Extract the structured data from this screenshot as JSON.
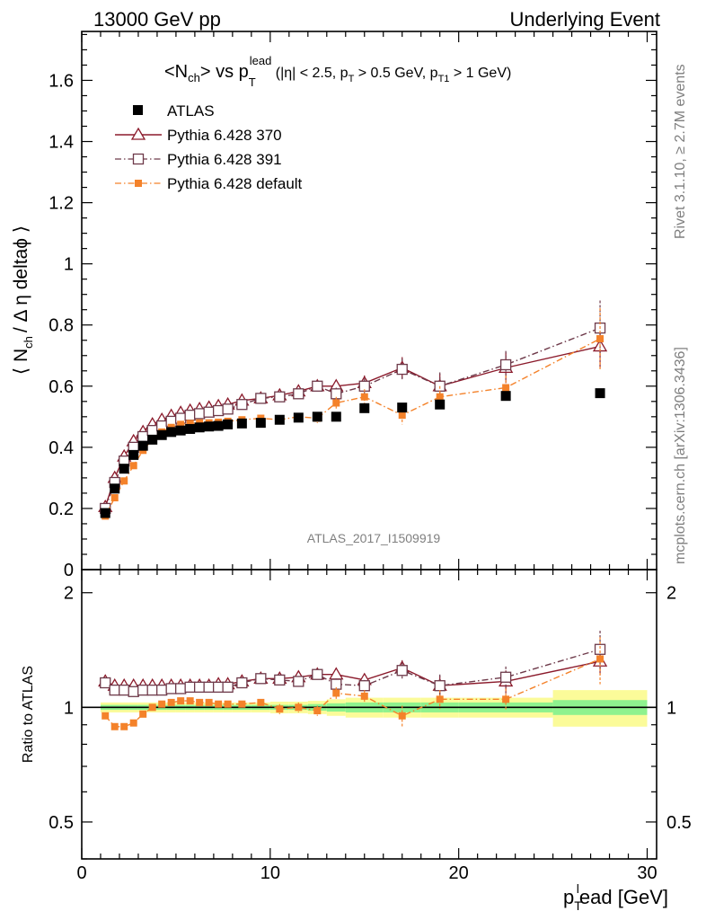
{
  "header": {
    "left": "13000 GeV pp",
    "right": "Underlying Event"
  },
  "side": {
    "rivet": "Rivet 3.1.10, ≥ 2.7M events",
    "mcplots": "mcplots.cern.ch [arXiv:1306.3436]"
  },
  "watermark": "ATLAS_2017_I1509919",
  "colors": {
    "atlas": "#000000",
    "p370": "#8b1a2b",
    "p391": "#6e3a4a",
    "pdef": "#f4822a",
    "band_inner": "#8ef28e",
    "band_outer": "#fbfb99"
  },
  "chart_data": [
    {
      "type": "scatter",
      "title": {
        "main": "<N",
        "main_sub": "ch",
        "mid": "> vs p",
        "mid_sub": "T",
        "mid_sup": "lead",
        "cuts_a": " (|η| < 2.5, p",
        "cuts_sub_a": "T",
        "cuts_b": " > 0.5 GeV, p",
        "cuts_sub_b": "T1",
        "cuts_c": " > 1 GeV)"
      },
      "ylabel": {
        "pre": "⟨ N",
        "sub": "ch",
        "post": "/ Δ η deltaϕ ⟩"
      },
      "xlim": [
        0,
        30.5
      ],
      "ylim": [
        0,
        1.76
      ],
      "yticks": [
        "0",
        "0.2",
        "0.4",
        "0.6",
        "0.8",
        "1",
        "1.2",
        "1.4",
        "1.6"
      ],
      "legend_position": "top-left",
      "series": [
        {
          "name": "ATLAS",
          "marker": "filled-square",
          "x": [
            1.25,
            1.75,
            2.25,
            2.75,
            3.25,
            3.75,
            4.25,
            4.75,
            5.25,
            5.75,
            6.25,
            6.75,
            7.25,
            7.75,
            8.5,
            9.5,
            10.5,
            11.5,
            12.5,
            13.5,
            15.0,
            17.0,
            19.0,
            22.5,
            27.5
          ],
          "y": [
            0.185,
            0.265,
            0.33,
            0.375,
            0.405,
            0.425,
            0.44,
            0.45,
            0.455,
            0.46,
            0.465,
            0.468,
            0.47,
            0.475,
            0.478,
            0.48,
            0.49,
            0.497,
            0.5,
            0.5,
            0.528,
            0.53,
            0.54,
            0.568,
            0.577
          ]
        },
        {
          "name": "Pythia 6.428 370",
          "marker": "open-triangle",
          "line": "solid",
          "x": [
            1.25,
            1.75,
            2.25,
            2.75,
            3.25,
            3.75,
            4.25,
            4.75,
            5.25,
            5.75,
            6.25,
            6.75,
            7.25,
            7.75,
            8.5,
            9.5,
            10.5,
            11.5,
            12.5,
            13.5,
            15.0,
            17.0,
            19.0,
            22.5,
            27.5
          ],
          "y": [
            0.205,
            0.3,
            0.37,
            0.42,
            0.45,
            0.475,
            0.49,
            0.503,
            0.513,
            0.52,
            0.525,
            0.53,
            0.535,
            0.54,
            0.553,
            0.56,
            0.57,
            0.583,
            0.6,
            0.6,
            0.61,
            0.66,
            0.6,
            0.66,
            0.73
          ],
          "err": [
            0.005,
            0.005,
            0.005,
            0.005,
            0.005,
            0.005,
            0.005,
            0.005,
            0.005,
            0.006,
            0.006,
            0.006,
            0.007,
            0.007,
            0.008,
            0.01,
            0.012,
            0.014,
            0.016,
            0.02,
            0.025,
            0.035,
            0.04,
            0.05,
            0.07
          ]
        },
        {
          "name": "Pythia 6.428 391",
          "marker": "open-square",
          "line": "dash-dot",
          "x": [
            1.25,
            1.75,
            2.25,
            2.75,
            3.25,
            3.75,
            4.25,
            4.75,
            5.25,
            5.75,
            6.25,
            6.75,
            7.25,
            7.75,
            8.5,
            9.5,
            10.5,
            11.5,
            12.5,
            13.5,
            15.0,
            17.0,
            19.0,
            22.5,
            27.5
          ],
          "y": [
            0.2,
            0.285,
            0.355,
            0.4,
            0.435,
            0.455,
            0.47,
            0.485,
            0.495,
            0.505,
            0.51,
            0.515,
            0.52,
            0.525,
            0.54,
            0.56,
            0.565,
            0.575,
            0.6,
            0.575,
            0.6,
            0.655,
            0.6,
            0.67,
            0.79
          ],
          "err": [
            0.005,
            0.005,
            0.005,
            0.005,
            0.005,
            0.005,
            0.005,
            0.005,
            0.005,
            0.006,
            0.006,
            0.006,
            0.007,
            0.007,
            0.008,
            0.01,
            0.012,
            0.014,
            0.016,
            0.02,
            0.025,
            0.035,
            0.045,
            0.045,
            0.09
          ]
        },
        {
          "name": "Pythia 6.428 default",
          "marker": "filled-small-square",
          "line": "dash-dot",
          "x": [
            1.25,
            1.75,
            2.25,
            2.75,
            3.25,
            3.75,
            4.25,
            4.75,
            5.25,
            5.75,
            6.25,
            6.75,
            7.25,
            7.75,
            8.5,
            9.5,
            10.5,
            11.5,
            12.5,
            13.5,
            15.0,
            17.0,
            19.0,
            22.5,
            27.5
          ],
          "y": [
            0.175,
            0.235,
            0.29,
            0.34,
            0.39,
            0.425,
            0.45,
            0.465,
            0.475,
            0.478,
            0.48,
            0.48,
            0.482,
            0.485,
            0.49,
            0.495,
            0.49,
            0.5,
            0.495,
            0.545,
            0.565,
            0.505,
            0.565,
            0.595,
            0.755
          ],
          "err": [
            0.005,
            0.005,
            0.005,
            0.005,
            0.005,
            0.005,
            0.005,
            0.005,
            0.005,
            0.006,
            0.006,
            0.006,
            0.007,
            0.007,
            0.008,
            0.01,
            0.012,
            0.014,
            0.016,
            0.02,
            0.025,
            0.03,
            0.035,
            0.04,
            0.1
          ]
        }
      ]
    },
    {
      "type": "scatter",
      "ylabel": "Ratio to ATLAS",
      "xlabel": {
        "pre": "p",
        "sub": "T",
        "sup": "l",
        "post": "ead [GeV]"
      },
      "xlim": [
        0,
        30.5
      ],
      "ylim": [
        0.4,
        2.3
      ],
      "yticks": [
        "0.5",
        "1",
        "2"
      ],
      "xticks": [
        "0",
        "10",
        "20",
        "30"
      ],
      "reference_line": 1,
      "uncertainty_band": {
        "edges": [
          1,
          1.5,
          2,
          2.5,
          3,
          3.5,
          4,
          4.5,
          5,
          5.5,
          6,
          6.5,
          7,
          7.5,
          8,
          9,
          10,
          11,
          12,
          13,
          14,
          16,
          18,
          20,
          25,
          30
        ],
        "inner": [
          0.015,
          0.015,
          0.015,
          0.015,
          0.015,
          0.015,
          0.015,
          0.015,
          0.015,
          0.015,
          0.015,
          0.015,
          0.015,
          0.015,
          0.015,
          0.015,
          0.015,
          0.015,
          0.02,
          0.025,
          0.03,
          0.03,
          0.03,
          0.03,
          0.045
        ],
        "outer": [
          0.03,
          0.03,
          0.03,
          0.03,
          0.03,
          0.03,
          0.03,
          0.03,
          0.03,
          0.03,
          0.03,
          0.03,
          0.03,
          0.03,
          0.03,
          0.03,
          0.035,
          0.035,
          0.04,
          0.05,
          0.06,
          0.06,
          0.06,
          0.06,
          0.11
        ]
      },
      "series": [
        {
          "name": "Pythia 6.428 370",
          "x": [
            1.25,
            1.75,
            2.25,
            2.75,
            3.25,
            3.75,
            4.25,
            4.75,
            5.25,
            5.75,
            6.25,
            6.75,
            7.25,
            7.75,
            8.5,
            9.5,
            10.5,
            11.5,
            12.5,
            13.5,
            15.0,
            17.0,
            19.0,
            22.5,
            27.5
          ],
          "y": [
            1.17,
            1.14,
            1.14,
            1.14,
            1.14,
            1.14,
            1.14,
            1.14,
            1.14,
            1.14,
            1.14,
            1.14,
            1.15,
            1.15,
            1.17,
            1.19,
            1.19,
            1.2,
            1.22,
            1.22,
            1.18,
            1.27,
            1.14,
            1.17,
            1.32
          ],
          "err": [
            0.02,
            0.02,
            0.02,
            0.02,
            0.02,
            0.02,
            0.02,
            0.02,
            0.02,
            0.02,
            0.02,
            0.02,
            0.02,
            0.02,
            0.02,
            0.02,
            0.03,
            0.03,
            0.03,
            0.04,
            0.04,
            0.06,
            0.07,
            0.08,
            0.1
          ]
        },
        {
          "name": "Pythia 6.428 391",
          "x": [
            1.25,
            1.75,
            2.25,
            2.75,
            3.25,
            3.75,
            4.25,
            4.75,
            5.25,
            5.75,
            6.25,
            6.75,
            7.25,
            7.75,
            8.5,
            9.5,
            10.5,
            11.5,
            12.5,
            13.5,
            15.0,
            17.0,
            19.0,
            22.5,
            27.5
          ],
          "y": [
            1.16,
            1.11,
            1.11,
            1.1,
            1.11,
            1.11,
            1.11,
            1.12,
            1.12,
            1.13,
            1.13,
            1.13,
            1.13,
            1.13,
            1.16,
            1.19,
            1.18,
            1.17,
            1.22,
            1.15,
            1.14,
            1.25,
            1.14,
            1.2,
            1.42
          ],
          "err": [
            0.02,
            0.02,
            0.02,
            0.02,
            0.02,
            0.02,
            0.02,
            0.02,
            0.02,
            0.02,
            0.02,
            0.02,
            0.02,
            0.02,
            0.02,
            0.02,
            0.03,
            0.03,
            0.03,
            0.04,
            0.04,
            0.06,
            0.08,
            0.08,
            0.17
          ]
        },
        {
          "name": "Pythia 6.428 default",
          "x": [
            1.25,
            1.75,
            2.25,
            2.75,
            3.25,
            3.75,
            4.25,
            4.75,
            5.25,
            5.75,
            6.25,
            6.75,
            7.25,
            7.75,
            8.5,
            9.5,
            10.5,
            11.5,
            12.5,
            13.5,
            15.0,
            17.0,
            19.0,
            22.5,
            27.5
          ],
          "y": [
            0.95,
            0.89,
            0.89,
            0.91,
            0.96,
            1.0,
            1.02,
            1.03,
            1.04,
            1.04,
            1.03,
            1.03,
            1.02,
            1.02,
            1.02,
            1.03,
            0.99,
            1.0,
            0.98,
            1.09,
            1.07,
            0.95,
            1.05,
            1.05,
            1.34
          ],
          "err": [
            0.02,
            0.02,
            0.02,
            0.02,
            0.02,
            0.02,
            0.02,
            0.02,
            0.02,
            0.02,
            0.02,
            0.02,
            0.02,
            0.02,
            0.02,
            0.02,
            0.03,
            0.03,
            0.03,
            0.04,
            0.04,
            0.06,
            0.06,
            0.07,
            0.19
          ]
        }
      ]
    }
  ]
}
